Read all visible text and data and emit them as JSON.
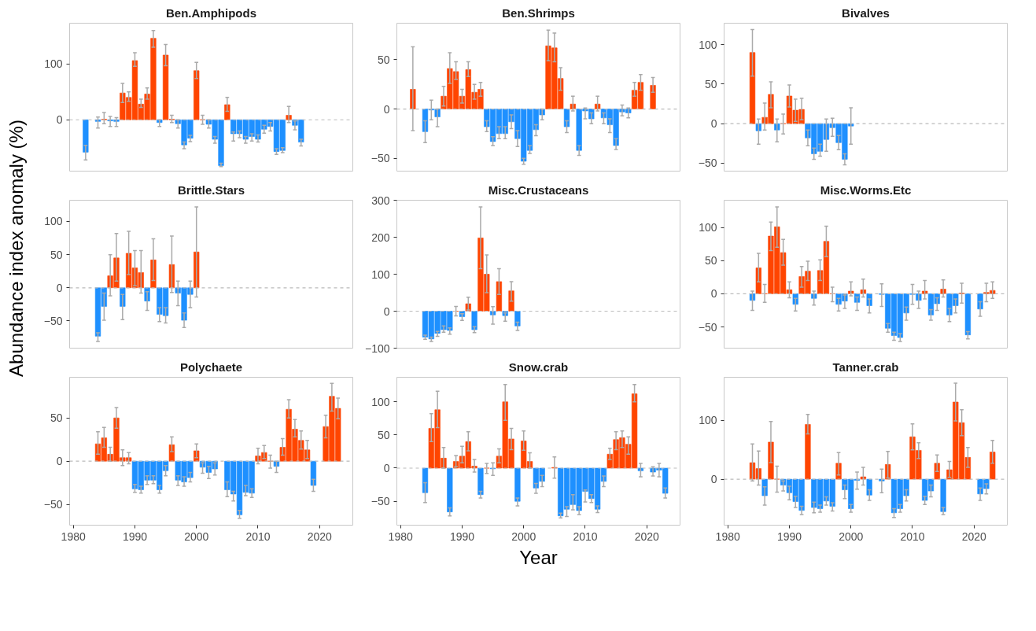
{
  "chart_data": [
    {
      "type": "bar",
      "title": "Ben.Amphipods",
      "xlim": [
        1979.4,
        2025.4
      ],
      "xticks": [
        1980,
        1990,
        2000,
        2010,
        2020
      ],
      "ylim": [
        -92,
        173
      ],
      "yticks": [
        0,
        100
      ],
      "tick_labels": "y",
      "x": [
        1982,
        1984,
        1985,
        1986,
        1987,
        1988,
        1989,
        1990,
        1991,
        1992,
        1993,
        1994,
        1995,
        1996,
        1997,
        1998,
        1999,
        2000,
        2001,
        2002,
        2003,
        2004,
        2005,
        2006,
        2007,
        2008,
        2009,
        2010,
        2011,
        2012,
        2013,
        2014,
        2015,
        2016,
        2017
      ],
      "values": [
        -58,
        -3,
        1,
        -2,
        -3,
        48,
        40,
        106,
        28,
        46,
        146,
        -5,
        116,
        1,
        -7,
        -45,
        -33,
        88,
        0,
        -8,
        -35,
        -82,
        27,
        -25,
        -25,
        -35,
        -30,
        -35,
        -17,
        -12,
        -57,
        -55,
        8,
        -10,
        -40
      ],
      "colors": [
        "#1e90ff",
        "#1e90ff",
        "#ff4500",
        "#1e90ff",
        "#1e90ff",
        "#ff4500",
        "#ff4500",
        "#ff4500",
        "#ff4500",
        "#ff4500",
        "#ff4500",
        "#1e90ff",
        "#ff4500",
        "#ff4500",
        "#1e90ff",
        "#1e90ff",
        "#1e90ff",
        "#ff4500",
        "#ff4500",
        "#1e90ff",
        "#1e90ff",
        "#1e90ff",
        "#ff4500",
        "#1e90ff",
        "#1e90ff",
        "#1e90ff",
        "#1e90ff",
        "#1e90ff",
        "#1e90ff",
        "#1e90ff",
        "#1e90ff",
        "#1e90ff",
        "#ff4500",
        "#1e90ff",
        "#1e90ff"
      ],
      "errors": [
        [
          -72,
          -46
        ],
        [
          -15,
          5
        ],
        [
          -7,
          13
        ],
        [
          -12,
          6
        ],
        [
          -12,
          4
        ],
        [
          31,
          65
        ],
        [
          33,
          50
        ],
        [
          96,
          120
        ],
        [
          22,
          37
        ],
        [
          37,
          57
        ],
        [
          130,
          160
        ],
        [
          -12,
          0
        ],
        [
          97,
          135
        ],
        [
          -5,
          8
        ],
        [
          -15,
          0
        ],
        [
          -52,
          -40
        ],
        [
          -39,
          -28
        ],
        [
          74,
          103
        ],
        [
          -8,
          8
        ],
        [
          -15,
          0
        ],
        [
          -42,
          -30
        ],
        [
          -84,
          -78
        ],
        [
          15,
          40
        ],
        [
          -38,
          -22
        ],
        [
          -32,
          -20
        ],
        [
          -42,
          -30
        ],
        [
          -38,
          -25
        ],
        [
          -40,
          -27
        ],
        [
          -24,
          -10
        ],
        [
          -20,
          -5
        ],
        [
          -62,
          -52
        ],
        [
          -59,
          -50
        ],
        [
          -5,
          24
        ],
        [
          -18,
          -2
        ],
        [
          -47,
          -35
        ]
      ],
      "ref_lines": [
        {
          "axis": "y",
          "value": 0,
          "color": "#bbbbbb",
          "line_style": "dashed"
        }
      ]
    },
    {
      "type": "bar",
      "title": "Ben.Shrimps",
      "xlim": [
        1979.4,
        2025.4
      ],
      "xticks": [
        1980,
        1990,
        2000,
        2010,
        2020
      ],
      "ylim": [
        -63,
        87
      ],
      "yticks": [
        -50,
        0,
        50
      ],
      "tick_labels": "y",
      "x": [
        1982,
        1984,
        1985,
        1986,
        1987,
        1988,
        1989,
        1990,
        1991,
        1992,
        1993,
        1994,
        1995,
        1996,
        1997,
        1998,
        1999,
        2000,
        2001,
        2002,
        2003,
        2004,
        2005,
        2006,
        2007,
        2008,
        2009,
        2010,
        2011,
        2012,
        2013,
        2014,
        2015,
        2016,
        2017,
        2018,
        2019,
        2021
      ],
      "values": [
        20,
        -23,
        -1,
        -8,
        13,
        41,
        38,
        13,
        40,
        17,
        20,
        -18,
        -33,
        -25,
        -25,
        -13,
        -30,
        -53,
        -42,
        -21,
        -6,
        64,
        62,
        31,
        -18,
        5,
        -42,
        -2,
        -10,
        5,
        -9,
        -16,
        -37,
        -3,
        -4,
        19,
        27,
        24
      ],
      "colors": [
        "#ff4500",
        "#1e90ff",
        "#1e90ff",
        "#1e90ff",
        "#ff4500",
        "#ff4500",
        "#ff4500",
        "#ff4500",
        "#ff4500",
        "#ff4500",
        "#ff4500",
        "#1e90ff",
        "#1e90ff",
        "#1e90ff",
        "#1e90ff",
        "#1e90ff",
        "#1e90ff",
        "#1e90ff",
        "#1e90ff",
        "#1e90ff",
        "#1e90ff",
        "#ff4500",
        "#ff4500",
        "#ff4500",
        "#1e90ff",
        "#ff4500",
        "#1e90ff",
        "#1e90ff",
        "#1e90ff",
        "#ff4500",
        "#1e90ff",
        "#1e90ff",
        "#1e90ff",
        "#1e90ff",
        "#1e90ff",
        "#ff4500",
        "#ff4500",
        "#ff4500"
      ],
      "errors": [
        [
          -22,
          63
        ],
        [
          -34,
          -12
        ],
        [
          -11,
          9
        ],
        [
          -18,
          0
        ],
        [
          3,
          23
        ],
        [
          26,
          57
        ],
        [
          30,
          48
        ],
        [
          6,
          20
        ],
        [
          33,
          48
        ],
        [
          10,
          25
        ],
        [
          13,
          27
        ],
        [
          -23,
          -12
        ],
        [
          -37,
          -28
        ],
        [
          -30,
          -18
        ],
        [
          -30,
          -18
        ],
        [
          -20,
          -6
        ],
        [
          -38,
          -22
        ],
        [
          -56,
          -50
        ],
        [
          -45,
          -37
        ],
        [
          -27,
          -16
        ],
        [
          -11,
          0
        ],
        [
          49,
          80
        ],
        [
          48,
          77
        ],
        [
          19,
          42
        ],
        [
          -24,
          -12
        ],
        [
          -2,
          13
        ],
        [
          -47,
          -37
        ],
        [
          -10,
          1
        ],
        [
          -15,
          -4
        ],
        [
          -2,
          13
        ],
        [
          -15,
          -4
        ],
        [
          -24,
          -10
        ],
        [
          -41,
          -30
        ],
        [
          -7,
          4
        ],
        [
          -9,
          1
        ],
        [
          13,
          27
        ],
        [
          19,
          35
        ],
        [
          17,
          32
        ]
      ],
      "ref_lines": [
        {
          "axis": "y",
          "value": 0,
          "color": "#bbbbbb",
          "line_style": "dashed"
        }
      ]
    },
    {
      "type": "bar",
      "title": "Bivalves",
      "xlim": [
        1979.4,
        2025.4
      ],
      "xticks": [
        1980,
        1990,
        2000,
        2010,
        2020
      ],
      "ylim": [
        -60,
        127
      ],
      "yticks": [
        -50,
        0,
        50,
        100
      ],
      "tick_labels": "y",
      "x": [
        1984,
        1985,
        1986,
        1987,
        1988,
        1989,
        1990,
        1991,
        1992,
        1993,
        1994,
        1995,
        1996,
        1997,
        1998,
        1999,
        2000
      ],
      "values": [
        90,
        -9,
        8,
        37,
        -8,
        0,
        35,
        17,
        18,
        -18,
        -38,
        -35,
        -20,
        -5,
        -24,
        -45,
        -3
      ],
      "colors": [
        "#ff4500",
        "#1e90ff",
        "#ff4500",
        "#ff4500",
        "#1e90ff",
        "#ff4500",
        "#ff4500",
        "#ff4500",
        "#ff4500",
        "#1e90ff",
        "#1e90ff",
        "#1e90ff",
        "#1e90ff",
        "#1e90ff",
        "#1e90ff",
        "#1e90ff",
        "#1e90ff"
      ],
      "errors": [
        [
          60,
          119
        ],
        [
          -26,
          6
        ],
        [
          -8,
          26
        ],
        [
          20,
          53
        ],
        [
          -23,
          6
        ],
        [
          -13,
          12
        ],
        [
          21,
          49
        ],
        [
          3,
          31
        ],
        [
          5,
          32
        ],
        [
          -28,
          -8
        ],
        [
          -45,
          -31
        ],
        [
          -41,
          -26
        ],
        [
          -35,
          6
        ],
        [
          -16,
          7
        ],
        [
          -33,
          -15
        ],
        [
          -52,
          -38
        ],
        [
          -26,
          20
        ]
      ],
      "ref_lines": [
        {
          "axis": "y",
          "value": 0,
          "color": "#bbbbbb",
          "line_style": "dashed"
        }
      ]
    },
    {
      "type": "bar",
      "title": "Brittle.Stars",
      "xlim": [
        1979.4,
        2025.4
      ],
      "xticks": [
        1980,
        1990,
        2000,
        2010,
        2020
      ],
      "ylim": [
        -91,
        132
      ],
      "yticks": [
        -50,
        0,
        50,
        100
      ],
      "tick_labels": "y",
      "ylabel": "Abundance index anomaly (%)",
      "x": [
        1984,
        1985,
        1986,
        1987,
        1988,
        1989,
        1990,
        1991,
        1992,
        1993,
        1994,
        1995,
        1996,
        1997,
        1998,
        1999,
        2000
      ],
      "values": [
        -73,
        -28,
        18,
        45,
        -28,
        52,
        30,
        23,
        -20,
        42,
        -40,
        -42,
        35,
        -8,
        -49,
        -10,
        54
      ],
      "colors": [
        "#1e90ff",
        "#1e90ff",
        "#ff4500",
        "#ff4500",
        "#1e90ff",
        "#ff4500",
        "#ff4500",
        "#ff4500",
        "#1e90ff",
        "#ff4500",
        "#1e90ff",
        "#1e90ff",
        "#ff4500",
        "#1e90ff",
        "#1e90ff",
        "#1e90ff",
        "#ff4500"
      ],
      "errors": [
        [
          -81,
          -68
        ],
        [
          -49,
          -8
        ],
        [
          -12,
          50
        ],
        [
          10,
          82
        ],
        [
          -48,
          -10
        ],
        [
          20,
          85
        ],
        [
          3,
          56
        ],
        [
          -8,
          56
        ],
        [
          -34,
          -6
        ],
        [
          11,
          74
        ],
        [
          -51,
          -30
        ],
        [
          -53,
          -30
        ],
        [
          -7,
          78
        ],
        [
          -27,
          10
        ],
        [
          -60,
          -38
        ],
        [
          -30,
          10
        ],
        [
          -14,
          122
        ]
      ],
      "ref_lines": [
        {
          "axis": "y",
          "value": 0,
          "color": "#bbbbbb",
          "line_style": "dashed"
        }
      ]
    },
    {
      "type": "bar",
      "title": "Misc.Crustaceans",
      "xlim": [
        1979.4,
        2025.4
      ],
      "xticks": [
        1980,
        1990,
        2000,
        2010,
        2020
      ],
      "ylim": [
        -100,
        300
      ],
      "yticks": [
        -100,
        0,
        100,
        200,
        300
      ],
      "tick_labels": "y",
      "x": [
        1984,
        1985,
        1986,
        1987,
        1988,
        1989,
        1990,
        1991,
        1992,
        1993,
        1994,
        1995,
        1996,
        1997,
        1998,
        1999
      ],
      "values": [
        -70,
        -75,
        -60,
        -50,
        -52,
        0,
        -15,
        20,
        -50,
        198,
        100,
        -10,
        80,
        -12,
        55,
        -40
      ],
      "colors": [
        "#1e90ff",
        "#1e90ff",
        "#1e90ff",
        "#1e90ff",
        "#1e90ff",
        "#ff4500",
        "#1e90ff",
        "#ff4500",
        "#1e90ff",
        "#ff4500",
        "#ff4500",
        "#1e90ff",
        "#ff4500",
        "#1e90ff",
        "#ff4500",
        "#1e90ff"
      ],
      "errors": [
        [
          -76,
          -65
        ],
        [
          -82,
          -70
        ],
        [
          -68,
          -55
        ],
        [
          -57,
          -40
        ],
        [
          -62,
          -45
        ],
        [
          -13,
          13
        ],
        [
          -25,
          -7
        ],
        [
          3,
          38
        ],
        [
          -58,
          -42
        ],
        [
          115,
          282
        ],
        [
          50,
          152
        ],
        [
          -35,
          12
        ],
        [
          45,
          115
        ],
        [
          -27,
          -5
        ],
        [
          27,
          80
        ],
        [
          -52,
          -30
        ]
      ],
      "ref_lines": [
        {
          "axis": "y",
          "value": 0,
          "color": "#bbbbbb",
          "line_style": "dashed"
        }
      ]
    },
    {
      "type": "bar",
      "title": "Misc.Worms.Etc",
      "xlim": [
        1979.4,
        2025.4
      ],
      "xticks": [
        1980,
        1990,
        2000,
        2010,
        2020
      ],
      "ylim": [
        -82,
        141
      ],
      "yticks": [
        -50,
        0,
        50,
        100
      ],
      "tick_labels": "y",
      "x": [
        1984,
        1985,
        1986,
        1987,
        1988,
        1989,
        1990,
        1991,
        1992,
        1993,
        1994,
        1995,
        1996,
        1997,
        1998,
        1999,
        2000,
        2001,
        2002,
        2003,
        2005,
        2006,
        2007,
        2008,
        2009,
        2010,
        2011,
        2012,
        2013,
        2014,
        2015,
        2016,
        2017,
        2018,
        2019,
        2021,
        2022,
        2023
      ],
      "values": [
        -10,
        39,
        0,
        87,
        101,
        62,
        6,
        -16,
        26,
        34,
        -7,
        35,
        79,
        0,
        -16,
        -11,
        4,
        -13,
        6,
        -18,
        -1,
        -52,
        -63,
        -66,
        -29,
        -1,
        -10,
        4,
        -32,
        -15,
        7,
        -32,
        -18,
        1,
        -62,
        -23,
        2,
        5
      ],
      "colors": [
        "#1e90ff",
        "#ff4500",
        "#ff4500",
        "#ff4500",
        "#ff4500",
        "#ff4500",
        "#ff4500",
        "#1e90ff",
        "#ff4500",
        "#ff4500",
        "#1e90ff",
        "#ff4500",
        "#ff4500",
        "#ff4500",
        "#1e90ff",
        "#1e90ff",
        "#ff4500",
        "#1e90ff",
        "#ff4500",
        "#1e90ff",
        "#1e90ff",
        "#1e90ff",
        "#1e90ff",
        "#1e90ff",
        "#1e90ff",
        "#1e90ff",
        "#1e90ff",
        "#ff4500",
        "#1e90ff",
        "#1e90ff",
        "#ff4500",
        "#1e90ff",
        "#1e90ff",
        "#ff4500",
        "#1e90ff",
        "#1e90ff",
        "#ff4500",
        "#ff4500"
      ],
      "errors": [
        [
          -25,
          4
        ],
        [
          18,
          61
        ],
        [
          -13,
          14
        ],
        [
          65,
          108
        ],
        [
          70,
          131
        ],
        [
          43,
          82
        ],
        [
          -6,
          18
        ],
        [
          -26,
          -7
        ],
        [
          10,
          41
        ],
        [
          20,
          49
        ],
        [
          -17,
          4
        ],
        [
          20,
          51
        ],
        [
          56,
          102
        ],
        [
          -12,
          10
        ],
        [
          -26,
          -7
        ],
        [
          -22,
          -2
        ],
        [
          -3,
          18
        ],
        [
          -25,
          -5
        ],
        [
          -5,
          22
        ],
        [
          -29,
          -8
        ],
        [
          -19,
          15
        ],
        [
          -58,
          -45
        ],
        [
          -70,
          -58
        ],
        [
          -72,
          -60
        ],
        [
          -40,
          -20
        ],
        [
          -16,
          14
        ],
        [
          -22,
          4
        ],
        [
          -8,
          20
        ],
        [
          -40,
          -24
        ],
        [
          -25,
          -6
        ],
        [
          -5,
          21
        ],
        [
          -42,
          -22
        ],
        [
          -29,
          -8
        ],
        [
          -14,
          16
        ],
        [
          -68,
          -57
        ],
        [
          -34,
          -12
        ],
        [
          -12,
          16
        ],
        [
          -7,
          18
        ]
      ],
      "ref_lines": [
        {
          "axis": "y",
          "value": 0,
          "color": "#bbbbbb",
          "line_style": "dashed"
        }
      ]
    },
    {
      "type": "bar",
      "title": "Polychaete",
      "xlim": [
        1979.4,
        2025.4
      ],
      "xticks": [
        1980,
        1990,
        2000,
        2010,
        2020
      ],
      "ylim": [
        -74,
        97
      ],
      "yticks": [
        -50,
        0,
        50
      ],
      "x": [
        1984,
        1985,
        1986,
        1987,
        1988,
        1989,
        1990,
        1991,
        1992,
        1993,
        1994,
        1995,
        1996,
        1997,
        1998,
        1999,
        2000,
        2001,
        2002,
        2003,
        2005,
        2006,
        2007,
        2008,
        2009,
        2010,
        2011,
        2012,
        2013,
        2014,
        2015,
        2016,
        2017,
        2018,
        2019,
        2021,
        2022,
        2023
      ],
      "values": [
        20,
        27,
        8,
        50,
        4,
        4,
        -32,
        -33,
        -22,
        -22,
        -33,
        -11,
        19,
        -22,
        -24,
        -19,
        12,
        -7,
        -13,
        -9,
        -33,
        -38,
        -62,
        -36,
        -37,
        6,
        10,
        0,
        -6,
        16,
        60,
        37,
        24,
        13,
        -28,
        40,
        75,
        61
      ],
      "colors": [
        "#ff4500",
        "#ff4500",
        "#ff4500",
        "#ff4500",
        "#ff4500",
        "#ff4500",
        "#1e90ff",
        "#1e90ff",
        "#1e90ff",
        "#1e90ff",
        "#1e90ff",
        "#1e90ff",
        "#ff4500",
        "#1e90ff",
        "#1e90ff",
        "#1e90ff",
        "#ff4500",
        "#1e90ff",
        "#1e90ff",
        "#1e90ff",
        "#1e90ff",
        "#1e90ff",
        "#1e90ff",
        "#1e90ff",
        "#1e90ff",
        "#ff4500",
        "#ff4500",
        "#ff4500",
        "#1e90ff",
        "#ff4500",
        "#ff4500",
        "#ff4500",
        "#ff4500",
        "#ff4500",
        "#1e90ff",
        "#ff4500",
        "#ff4500",
        "#ff4500"
      ],
      "errors": [
        [
          8,
          34
        ],
        [
          16,
          39
        ],
        [
          0,
          16
        ],
        [
          38,
          62
        ],
        [
          -5,
          13
        ],
        [
          -3,
          10
        ],
        [
          -36,
          -27
        ],
        [
          -37,
          -29
        ],
        [
          -27,
          -17
        ],
        [
          -26,
          -17
        ],
        [
          -37,
          -28
        ],
        [
          -17,
          -5
        ],
        [
          11,
          28
        ],
        [
          -28,
          -17
        ],
        [
          -29,
          -18
        ],
        [
          -24,
          -13
        ],
        [
          4,
          20
        ],
        [
          -14,
          -2
        ],
        [
          -20,
          -6
        ],
        [
          -16,
          -2
        ],
        [
          -41,
          -24
        ],
        [
          -46,
          -35
        ],
        [
          -66,
          -57
        ],
        [
          -40,
          -28
        ],
        [
          -42,
          -32
        ],
        [
          -3,
          15
        ],
        [
          3,
          18
        ],
        [
          -8,
          7
        ],
        [
          -13,
          0
        ],
        [
          7,
          26
        ],
        [
          50,
          71
        ],
        [
          28,
          48
        ],
        [
          14,
          35
        ],
        [
          3,
          24
        ],
        [
          -35,
          -21
        ],
        [
          27,
          53
        ],
        [
          58,
          90
        ],
        [
          49,
          73
        ]
      ],
      "ref_lines": [
        {
          "axis": "y",
          "value": 0,
          "color": "#bbbbbb",
          "line_style": "dashed"
        }
      ]
    },
    {
      "type": "bar",
      "title": "Snow.crab",
      "xlim": [
        1979.4,
        2025.4
      ],
      "xticks": [
        1980,
        1990,
        2000,
        2010,
        2020
      ],
      "ylim": [
        -86,
        137
      ],
      "yticks": [
        -50,
        0,
        50,
        100
      ],
      "xlabel": "Year",
      "x": [
        1984,
        1985,
        1986,
        1987,
        1988,
        1989,
        1990,
        1991,
        1992,
        1993,
        1994,
        1995,
        1996,
        1997,
        1998,
        1999,
        2000,
        2001,
        2002,
        2003,
        2005,
        2006,
        2007,
        2008,
        2009,
        2010,
        2011,
        2012,
        2013,
        2014,
        2015,
        2016,
        2017,
        2018,
        2019,
        2021,
        2022,
        2023
      ],
      "values": [
        -37,
        60,
        88,
        15,
        -66,
        10,
        18,
        40,
        3,
        -40,
        0,
        -1,
        18,
        100,
        44,
        -50,
        41,
        10,
        -30,
        -20,
        1,
        -72,
        -62,
        -55,
        -64,
        -35,
        -46,
        -62,
        -20,
        21,
        43,
        46,
        36,
        112,
        -4,
        -6,
        -3,
        -38
      ],
      "colors": [
        "#1e90ff",
        "#ff4500",
        "#ff4500",
        "#ff4500",
        "#1e90ff",
        "#ff4500",
        "#ff4500",
        "#ff4500",
        "#ff4500",
        "#1e90ff",
        "#ff4500",
        "#1e90ff",
        "#ff4500",
        "#ff4500",
        "#ff4500",
        "#1e90ff",
        "#ff4500",
        "#ff4500",
        "#1e90ff",
        "#1e90ff",
        "#ff4500",
        "#1e90ff",
        "#1e90ff",
        "#1e90ff",
        "#1e90ff",
        "#1e90ff",
        "#1e90ff",
        "#1e90ff",
        "#1e90ff",
        "#ff4500",
        "#ff4500",
        "#ff4500",
        "#ff4500",
        "#ff4500",
        "#1e90ff",
        "#1e90ff",
        "#1e90ff",
        "#1e90ff"
      ],
      "errors": [
        [
          -52,
          -22
        ],
        [
          40,
          82
        ],
        [
          61,
          116
        ],
        [
          0,
          31
        ],
        [
          -72,
          -60
        ],
        [
          2,
          19
        ],
        [
          8,
          33
        ],
        [
          26,
          55
        ],
        [
          -6,
          13
        ],
        [
          -45,
          -35
        ],
        [
          -8,
          7
        ],
        [
          -11,
          8
        ],
        [
          8,
          29
        ],
        [
          72,
          126
        ],
        [
          28,
          60
        ],
        [
          -57,
          -45
        ],
        [
          27,
          56
        ],
        [
          0,
          23
        ],
        [
          -38,
          -23
        ],
        [
          -28,
          -11
        ],
        [
          -15,
          17
        ],
        [
          -75,
          -68
        ],
        [
          -73,
          -58
        ],
        [
          -63,
          -40
        ],
        [
          -70,
          -58
        ],
        [
          -51,
          -33
        ],
        [
          -52,
          -40
        ],
        [
          -67,
          -57
        ],
        [
          -28,
          -12
        ],
        [
          13,
          30
        ],
        [
          28,
          55
        ],
        [
          31,
          56
        ],
        [
          21,
          47
        ],
        [
          100,
          126
        ],
        [
          -13,
          7
        ],
        [
          -12,
          2
        ],
        [
          -13,
          7
        ],
        [
          -45,
          -30
        ]
      ],
      "ref_lines": [
        {
          "axis": "y",
          "value": 0,
          "color": "#bbbbbb",
          "line_style": "dashed"
        }
      ]
    },
    {
      "type": "bar",
      "title": "Tanner.crab",
      "xlim": [
        1979.4,
        2025.4
      ],
      "xticks": [
        1980,
        1990,
        2000,
        2010,
        2020
      ],
      "ylim": [
        -78,
        173
      ],
      "yticks": [
        0,
        100
      ],
      "x": [
        1984,
        1985,
        1986,
        1987,
        1988,
        1989,
        1990,
        1991,
        1992,
        1993,
        1994,
        1995,
        1996,
        1997,
        1998,
        1999,
        2000,
        2001,
        2002,
        2003,
        2005,
        2006,
        2007,
        2008,
        2009,
        2010,
        2011,
        2012,
        2013,
        2014,
        2015,
        2016,
        2017,
        2018,
        2019,
        2021,
        2022,
        2023
      ],
      "values": [
        28,
        18,
        -28,
        63,
        0,
        -10,
        -23,
        -38,
        -53,
        93,
        -48,
        -50,
        -37,
        -46,
        27,
        -18,
        -50,
        -2,
        4,
        -27,
        -3,
        25,
        -57,
        -50,
        -28,
        72,
        49,
        -36,
        -20,
        27,
        -55,
        16,
        131,
        96,
        37,
        -25,
        -16,
        46
      ],
      "colors": [
        "#ff4500",
        "#ff4500",
        "#1e90ff",
        "#ff4500",
        "#ff4500",
        "#1e90ff",
        "#1e90ff",
        "#1e90ff",
        "#1e90ff",
        "#ff4500",
        "#1e90ff",
        "#1e90ff",
        "#1e90ff",
        "#1e90ff",
        "#ff4500",
        "#1e90ff",
        "#1e90ff",
        "#1e90ff",
        "#ff4500",
        "#1e90ff",
        "#1e90ff",
        "#ff4500",
        "#1e90ff",
        "#1e90ff",
        "#1e90ff",
        "#ff4500",
        "#ff4500",
        "#1e90ff",
        "#1e90ff",
        "#ff4500",
        "#1e90ff",
        "#ff4500",
        "#ff4500",
        "#ff4500",
        "#ff4500",
        "#1e90ff",
        "#1e90ff",
        "#ff4500"
      ],
      "errors": [
        [
          -3,
          60
        ],
        [
          -10,
          48
        ],
        [
          -44,
          -13
        ],
        [
          28,
          98
        ],
        [
          -22,
          22
        ],
        [
          -20,
          -3
        ],
        [
          -35,
          -12
        ],
        [
          -48,
          -29
        ],
        [
          -60,
          -46
        ],
        [
          77,
          110
        ],
        [
          -57,
          -39
        ],
        [
          -56,
          -44
        ],
        [
          -44,
          -30
        ],
        [
          -54,
          -40
        ],
        [
          7,
          45
        ],
        [
          -33,
          -10
        ],
        [
          -56,
          -43
        ],
        [
          -17,
          12
        ],
        [
          -10,
          20
        ],
        [
          -36,
          -18
        ],
        [
          -23,
          17
        ],
        [
          2,
          47
        ],
        [
          -65,
          -50
        ],
        [
          -56,
          -43
        ],
        [
          -37,
          -18
        ],
        [
          50,
          94
        ],
        [
          35,
          62
        ],
        [
          -43,
          -29
        ],
        [
          -30,
          -10
        ],
        [
          13,
          41
        ],
        [
          -60,
          -48
        ],
        [
          3,
          30
        ],
        [
          99,
          163
        ],
        [
          74,
          118
        ],
        [
          20,
          54
        ],
        [
          -36,
          -15
        ],
        [
          -25,
          -8
        ],
        [
          27,
          66
        ]
      ],
      "ref_lines": [
        {
          "axis": "y",
          "value": 0,
          "color": "#bbbbbb",
          "line_style": "dashed"
        }
      ]
    }
  ]
}
